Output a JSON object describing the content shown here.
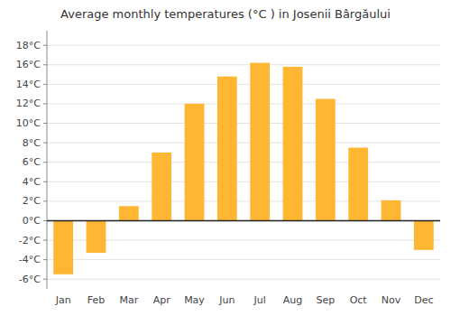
{
  "chart_data": {
    "type": "bar",
    "title": "Average monthly temperatures (°C ) in Josenii Bârgăului",
    "categories": [
      "Jan",
      "Feb",
      "Mar",
      "Apr",
      "May",
      "Jun",
      "Jul",
      "Aug",
      "Sep",
      "Oct",
      "Nov",
      "Dec"
    ],
    "values": [
      -5.5,
      -3.3,
      1.5,
      7.0,
      12.0,
      14.8,
      16.2,
      15.8,
      12.5,
      7.5,
      2.1,
      -3.0
    ],
    "color": "#FFB733",
    "ylim": [
      -7,
      19.5
    ],
    "yticks": [
      {
        "value": -6,
        "label": "-6°C"
      },
      {
        "value": -4,
        "label": "-4°C"
      },
      {
        "value": -2,
        "label": "-2°C"
      },
      {
        "value": 0,
        "label": "0°C"
      },
      {
        "value": 2,
        "label": "2°C"
      },
      {
        "value": 4,
        "label": "4°C"
      },
      {
        "value": 6,
        "label": "6°C"
      },
      {
        "value": 8,
        "label": "8°C"
      },
      {
        "value": 10,
        "label": "10°C"
      },
      {
        "value": 12,
        "label": "12°C"
      },
      {
        "value": 14,
        "label": "14°C"
      },
      {
        "value": 16,
        "label": "16°C"
      },
      {
        "value": 18,
        "label": "18°C"
      }
    ],
    "grid": true
  }
}
